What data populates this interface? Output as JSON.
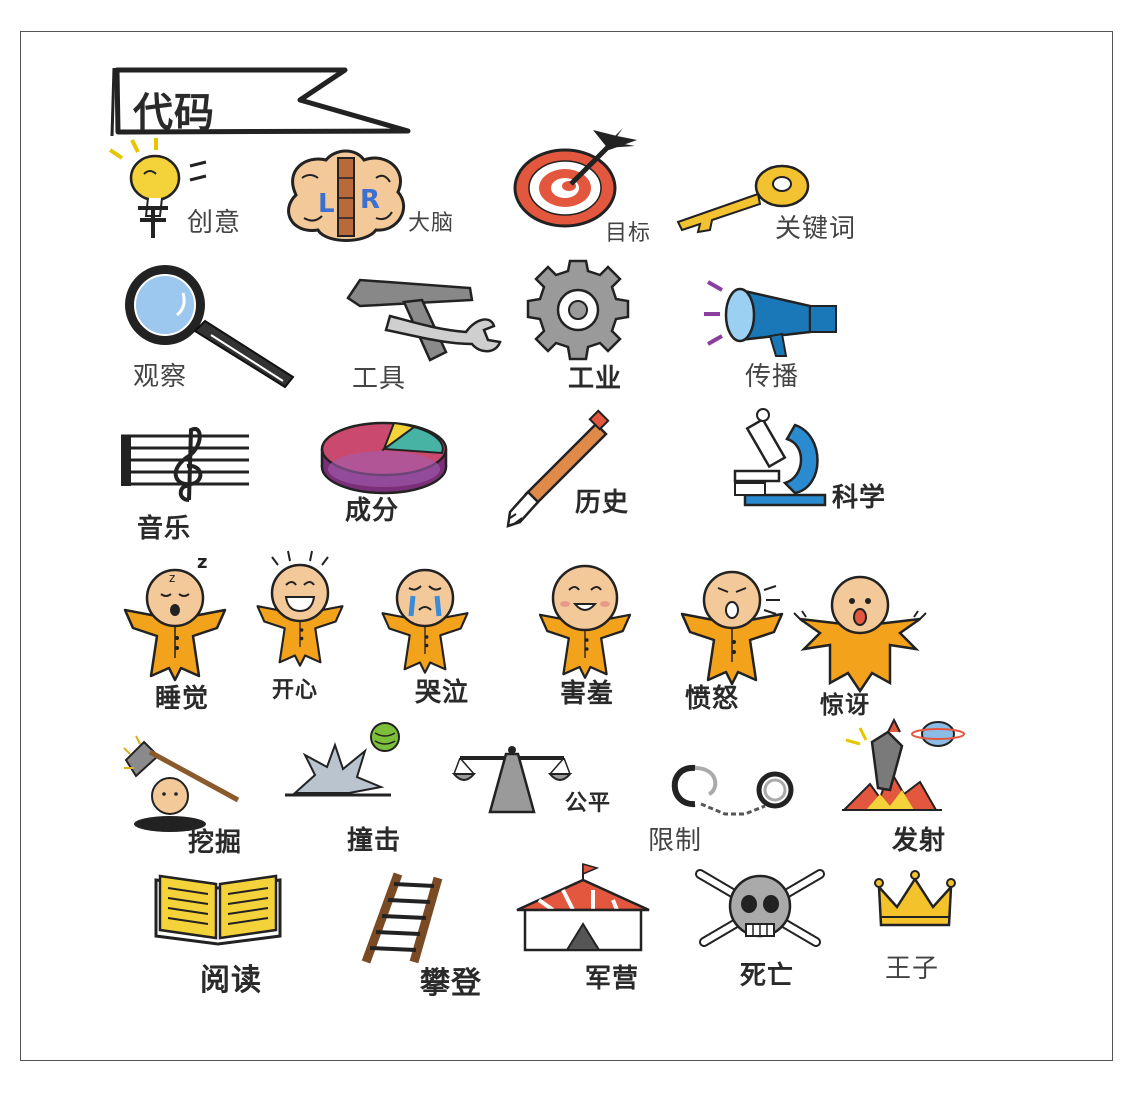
{
  "banner": {
    "title": "代码"
  },
  "labels": {
    "chuangyi": "创意",
    "danao": "大脑",
    "mubiao": "目标",
    "guanjianci": "关键词",
    "guancha": "观察",
    "gongju": "工具",
    "gongye": "工业",
    "chuanbo": "传播",
    "yinyue": "音乐",
    "chengfen": "成分",
    "lishi": "历史",
    "kexue": "科学",
    "shuijiao": "睡觉",
    "kaixin": "开心",
    "kuqi": "哭泣",
    "haixiu": "害羞",
    "fennu": "愤怒",
    "jingya": "惊讶",
    "wajue": "挖掘",
    "zhuangji": "撞击",
    "gongping": "公平",
    "xianzhi": "限制",
    "fashe": "发射",
    "yuedu": "阅读",
    "pandeng": "攀登",
    "junying": "军营",
    "siwang": "死亡",
    "wangzi": "王子"
  },
  "brain_letters": {
    "left": "L",
    "right": "R"
  },
  "colors": {
    "orange": "#f3a21c",
    "blue": "#6aa6dc",
    "red": "#e4573f",
    "yellow": "#f4d23a",
    "skin": "#f3c99a",
    "gray": "#8a8a8a",
    "purple": "#8a3f7f"
  }
}
